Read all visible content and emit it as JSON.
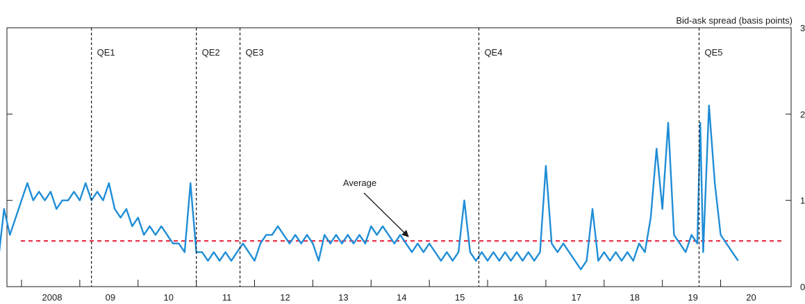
{
  "chart_data": {
    "type": "line",
    "ylabel": "Bid-ask spread (basis points)",
    "ylim": [
      0,
      3
    ],
    "yticks": [
      "0",
      "1",
      "2",
      "3"
    ],
    "xlim": [
      2007.5,
      2020.65
    ],
    "xtick_labels": [
      {
        "label": "2008",
        "x": 2008
      },
      {
        "label": "09",
        "x": 2009
      },
      {
        "label": "10",
        "x": 2010
      },
      {
        "label": "11",
        "x": 2011
      },
      {
        "label": "12",
        "x": 2012
      },
      {
        "label": "13",
        "x": 2013
      },
      {
        "label": "14",
        "x": 2014
      },
      {
        "label": "15",
        "x": 2015
      },
      {
        "label": "16",
        "x": 2016
      },
      {
        "label": "17",
        "x": 2017
      },
      {
        "label": "18",
        "x": 2018
      },
      {
        "label": "19",
        "x": 2019
      },
      {
        "label": "20",
        "x": 2020
      }
    ],
    "events": [
      {
        "label": "QE1",
        "x": 2009.2
      },
      {
        "label": "QE2",
        "x": 2011.0
      },
      {
        "label": "QE3",
        "x": 2011.75
      },
      {
        "label": "QE4",
        "x": 2015.85
      },
      {
        "label": "QE5",
        "x": 2019.63
      }
    ],
    "average": {
      "label": "Average",
      "value": 0.53
    },
    "series": [
      {
        "color": "#1f8dd6",
        "x": [
          2007.5,
          2007.6,
          2007.7,
          2007.8,
          2007.9,
          2008.0,
          2008.1,
          2008.2,
          2008.3,
          2008.4,
          2008.5,
          2008.6,
          2008.7,
          2008.8,
          2008.9,
          2009.0,
          2009.1,
          2009.2,
          2009.3,
          2009.4,
          2009.5,
          2009.6,
          2009.7,
          2009.8,
          2009.9,
          2010.0,
          2010.1,
          2010.2,
          2010.3,
          2010.4,
          2010.5,
          2010.6,
          2010.7,
          2010.8,
          2010.9,
          2011.0,
          2011.1,
          2011.2,
          2011.3,
          2011.4,
          2011.5,
          2011.6,
          2011.7,
          2011.8,
          2011.9,
          2012.0,
          2012.1,
          2012.2,
          2012.3,
          2012.4,
          2012.5,
          2012.6,
          2012.7,
          2012.8,
          2012.9,
          2013.0,
          2013.1,
          2013.2,
          2013.3,
          2013.4,
          2013.5,
          2013.6,
          2013.7,
          2013.8,
          2013.9,
          2014.0,
          2014.1,
          2014.2,
          2014.3,
          2014.4,
          2014.5,
          2014.6,
          2014.7,
          2014.8,
          2014.9,
          2015.0,
          2015.1,
          2015.2,
          2015.3,
          2015.4,
          2015.5,
          2015.6,
          2015.7,
          2015.8,
          2015.9,
          2016.0,
          2016.1,
          2016.2,
          2016.3,
          2016.4,
          2016.5,
          2016.6,
          2016.7,
          2016.8,
          2016.9,
          2017.0,
          2017.1,
          2017.2,
          2017.3,
          2017.4,
          2017.5,
          2017.6,
          2017.7,
          2017.8,
          2017.9,
          2018.0,
          2018.1,
          2018.2,
          2018.3,
          2018.4,
          2018.5,
          2018.6,
          2018.7,
          2018.8,
          2018.9,
          2019.0,
          2019.1,
          2019.2,
          2019.3,
          2019.4,
          2019.5,
          2019.6,
          2019.65,
          2019.7,
          2019.8,
          2019.9,
          2020.0,
          2020.1,
          2020.2,
          2020.3
        ],
        "values": [
          0.7,
          0.3,
          0.9,
          0.6,
          0.8,
          1.0,
          1.2,
          1.0,
          1.1,
          1.0,
          1.1,
          0.9,
          1.0,
          1.0,
          1.1,
          1.0,
          1.2,
          1.0,
          1.1,
          1.0,
          1.2,
          0.9,
          0.8,
          0.9,
          0.7,
          0.8,
          0.6,
          0.7,
          0.6,
          0.7,
          0.6,
          0.5,
          0.5,
          0.4,
          1.2,
          0.4,
          0.4,
          0.3,
          0.4,
          0.3,
          0.4,
          0.3,
          0.4,
          0.5,
          0.4,
          0.3,
          0.5,
          0.6,
          0.6,
          0.7,
          0.6,
          0.5,
          0.6,
          0.5,
          0.6,
          0.5,
          0.3,
          0.6,
          0.5,
          0.6,
          0.5,
          0.6,
          0.5,
          0.6,
          0.5,
          0.7,
          0.6,
          0.7,
          0.6,
          0.5,
          0.6,
          0.5,
          0.4,
          0.5,
          0.4,
          0.5,
          0.4,
          0.3,
          0.4,
          0.3,
          0.4,
          1.0,
          0.4,
          0.3,
          0.4,
          0.3,
          0.4,
          0.3,
          0.4,
          0.3,
          0.4,
          0.3,
          0.4,
          0.3,
          0.4,
          1.4,
          0.5,
          0.4,
          0.5,
          0.4,
          0.3,
          0.2,
          0.3,
          0.9,
          0.3,
          0.4,
          0.3,
          0.4,
          0.3,
          0.4,
          0.3,
          0.5,
          0.4,
          0.8,
          1.6,
          0.9,
          1.9,
          0.6,
          0.5,
          0.4,
          0.6,
          0.5,
          1.9,
          0.4,
          2.1,
          1.2,
          0.6,
          0.5,
          0.4,
          0.3
        ]
      }
    ]
  }
}
